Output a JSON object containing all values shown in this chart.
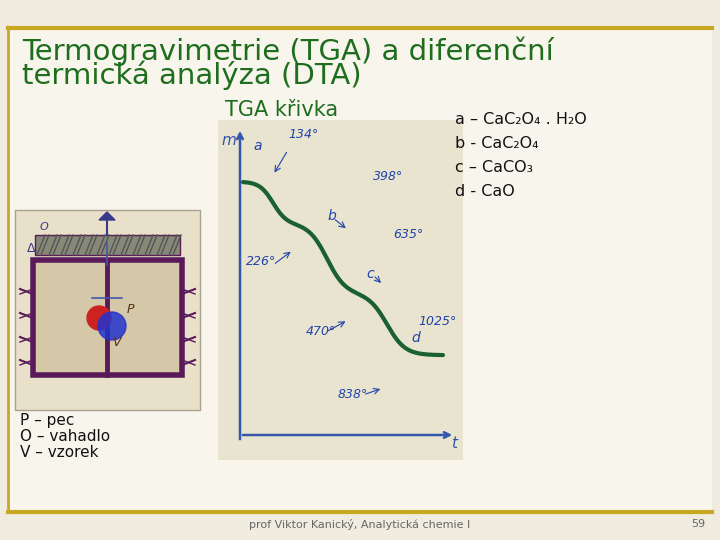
{
  "title_line1": "Termogravimetrie (TGA) a diferenční",
  "title_line2": "termická analýza (DTA)",
  "title_color": "#1e6e1e",
  "background_color": "#f0ece0",
  "center_bg": "#ffffff",
  "border_color": "#c8a820",
  "tga_label": "TGA křivka",
  "tga_label_color": "#1e6e1e",
  "legend_items": [
    [
      "a – CaC",
      "2",
      "O",
      "4",
      " . H",
      "2",
      "O"
    ],
    [
      "b - CaC",
      "2",
      "O",
      "4",
      "",
      "",
      ""
    ],
    [
      "c – CaCO",
      "3",
      "",
      "",
      "",
      "",
      ""
    ],
    [
      "d - CaO",
      "",
      "",
      "",
      "",
      "",
      ""
    ]
  ],
  "legend_color": "#111111",
  "left_labels": [
    "P – pec",
    "O – vahadlo",
    "V – vzorek"
  ],
  "left_label_color": "#111111",
  "footer_text": "prof Viktor Kanický, Analytická chemie I",
  "footer_page": "59",
  "footer_color": "#666666",
  "curve_color": "#1a6030",
  "axis_color": "#3355aa",
  "annotation_color": "#2244aa",
  "curve_bg": "#e8e4d0",
  "furnace_bg": "#e8e0c8",
  "furnace_wall": "#5a1a5a",
  "furnace_inner": "#d4c8a8"
}
